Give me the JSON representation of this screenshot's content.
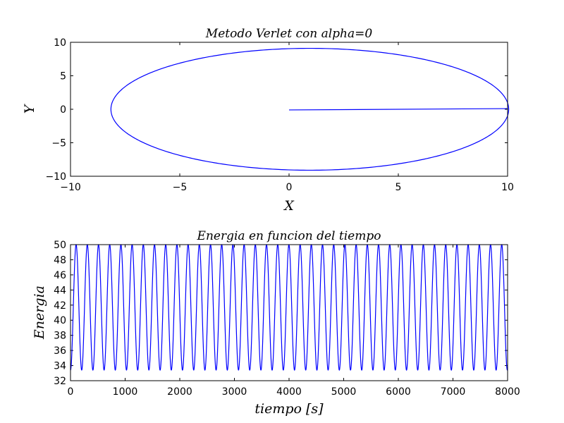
{
  "chart_data": [
    {
      "type": "line",
      "title": "Metodo Verlet con alpha=0",
      "xlabel": "X",
      "ylabel": "Y",
      "xlim": [
        -10,
        10
      ],
      "ylim": [
        -10,
        10
      ],
      "xticks": [
        -10,
        -5,
        0,
        5,
        10
      ],
      "yticks": [
        -10,
        -5,
        0,
        5,
        10
      ],
      "xtick_labels": [
        "−10",
        "−5",
        "0",
        "5",
        "10"
      ],
      "ytick_labels": [
        "−10",
        "−5",
        "0",
        "5",
        "10"
      ],
      "grid": false,
      "color": "#0000ff",
      "series": [
        {
          "shape": "ellipse",
          "center": [
            0.95,
            0
          ],
          "semi_axis_x": 9.1,
          "semi_axis_y": 9.1,
          "segment": {
            "x": [
              0,
              10
            ],
            "y": [
              -0.1,
              0.1
            ]
          }
        }
      ]
    },
    {
      "type": "line",
      "title": "Energia en funcion del tiempo",
      "xlabel": "tiempo [s]",
      "ylabel": "Energia",
      "xlim": [
        0,
        8000
      ],
      "ylim": [
        32,
        50
      ],
      "xticks": [
        0,
        1000,
        2000,
        3000,
        4000,
        5000,
        6000,
        7000,
        8000
      ],
      "yticks": [
        32,
        34,
        36,
        38,
        40,
        42,
        44,
        46,
        48,
        50
      ],
      "xtick_labels": [
        "0",
        "1000",
        "2000",
        "3000",
        "4000",
        "5000",
        "6000",
        "7000",
        "8000"
      ],
      "ytick_labels": [
        "32",
        "34",
        "36",
        "38",
        "40",
        "42",
        "44",
        "46",
        "48",
        "50"
      ],
      "grid": false,
      "color": "#0000ff",
      "series": [
        {
          "shape": "oscillation",
          "min": 33.4,
          "max": 50,
          "period": 205,
          "t_start": 0,
          "t_end": 8000,
          "starts_at": "min"
        }
      ]
    }
  ]
}
